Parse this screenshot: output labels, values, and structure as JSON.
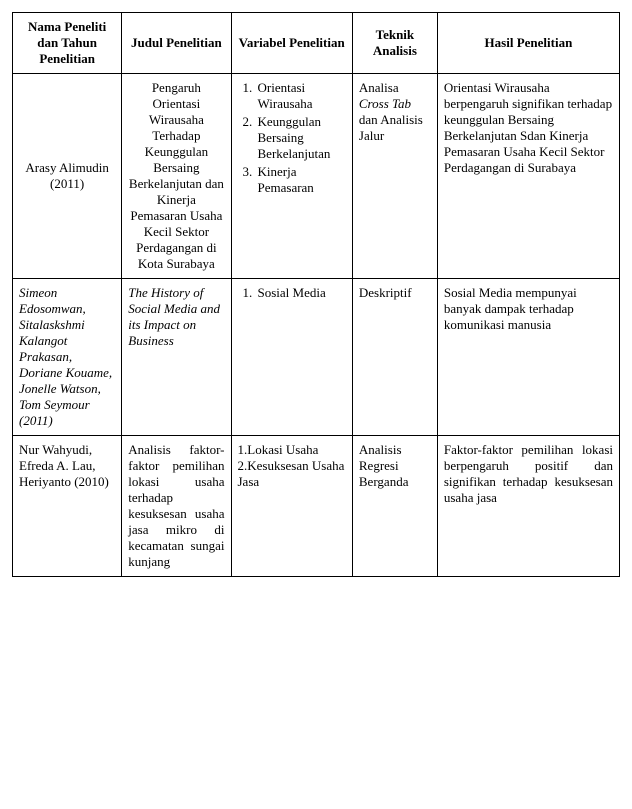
{
  "columns": [
    "Nama Peneliti dan Tahun Penelitian",
    "Judul Penelitian",
    "Variabel Penelitian",
    "Teknik Analisis",
    "Hasil Penelitian"
  ],
  "rows": [
    {
      "author": "Arasy Alimudin (2011)",
      "author_italic": false,
      "author_center": true,
      "title": "Pengaruh Orientasi Wirausaha Terhadap Keunggulan Bersaing Berkelanjutan dan Kinerja Pemasaran Usaha Kecil Sektor Perdagangan di Kota Surabaya",
      "title_italic": false,
      "title_center": true,
      "variables": [
        "Orientasi Wirausaha",
        "Keunggulan Bersaing Berkelanjutan",
        "Kinerja Pemasaran"
      ],
      "technique_parts": [
        {
          "text": "Analisa ",
          "italic": false
        },
        {
          "text": "Cross Tab",
          "italic": true
        },
        {
          "text": " dan Analisis Jalur",
          "italic": false
        }
      ],
      "result": "Orientasi Wirausaha berpengaruh signifikan terhadap keunggulan Bersaing Berkelanjutan Sdan Kinerja Pemasaran Usaha Kecil Sektor Perdagangan di Surabaya",
      "result_justify": false
    },
    {
      "author": "Simeon Edosomwan, Sitalaskshmi Kalangot Prakasan, Doriane Kouame, Jonelle Watson, Tom Seymour (2011)",
      "author_italic": true,
      "author_center": false,
      "title": "The History of Social Media and its Impact on Business",
      "title_italic": true,
      "title_center": false,
      "variables": [
        "Sosial Media"
      ],
      "technique_parts": [
        {
          "text": "Deskriptif",
          "italic": false
        }
      ],
      "result": "Sosial Media mempunyai banyak dampak terhadap komunikasi manusia",
      "result_justify": false
    },
    {
      "author": "Nur Wahyudi, Efreda A. Lau, Heriyanto (2010)",
      "author_italic": false,
      "author_center": false,
      "title": "Analisis faktor-faktor pemilihan lokasi usaha terhadap kesuksesan usaha jasa mikro di kecamatan sungai kunjang",
      "title_italic": false,
      "title_center": false,
      "title_justify": true,
      "variables_raw": "1.Lokasi Usaha 2.Kesuksesan Usaha Jasa",
      "technique_parts": [
        {
          "text": "Analisis Regresi Berganda",
          "italic": false
        }
      ],
      "result": "Faktor-faktor pemilihan lokasi berpengaruh positif dan signifikan terhadap kesuksesan usaha jasa",
      "result_justify": true
    }
  ]
}
